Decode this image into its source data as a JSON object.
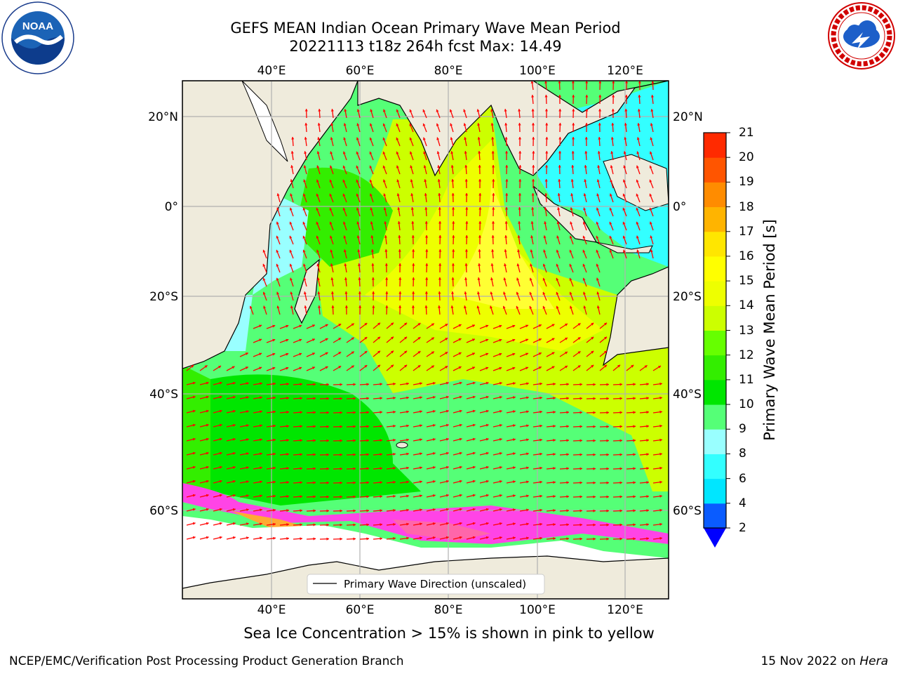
{
  "title": {
    "line1": "GEFS MEAN Indian Ocean Primary Wave Mean Period",
    "line2": "20221113 t18z 264h fcst   Max: 14.49"
  },
  "map": {
    "lon_ticks": [
      "40°E",
      "60°E",
      "80°E",
      "100°E",
      "120°E"
    ],
    "lat_ticks": [
      "20°N",
      "0°",
      "20°S",
      "40°S",
      "60°S"
    ],
    "legend_label": "Primary Wave Direction (unscaled)",
    "arrow_color": "#ff0000",
    "land_color": "#efebdc",
    "ice_colors": [
      "#ff44e6",
      "#ff66aa",
      "#ffaa33",
      "#ffe633"
    ]
  },
  "colorbar": {
    "label": "Primary Wave Mean Period [s]",
    "ticks": [
      "2",
      "4",
      "6",
      "8",
      "9",
      "10",
      "11",
      "12",
      "13",
      "14",
      "15",
      "16",
      "17",
      "18",
      "19",
      "20",
      "21"
    ],
    "colors": [
      "#0a5cff",
      "#00e6ff",
      "#33ffff",
      "#99ffff",
      "#55ff77",
      "#00e600",
      "#33ee00",
      "#66ff00",
      "#ccff00",
      "#eeff00",
      "#ffff00",
      "#ffe600",
      "#ffb400",
      "#ff8c00",
      "#ff5500",
      "#ff2a00"
    ],
    "under_color": "#0000ff"
  },
  "subtitle": "Sea Ice Concentration > 15% is shown in pink to yellow",
  "footer": {
    "left": "NCEP/EMC/Verification Post Processing Product Generation Branch",
    "right_prefix": "15 Nov 2022 on ",
    "right_machine": "Hera"
  },
  "logos": {
    "noaa_text": "NOAA"
  }
}
